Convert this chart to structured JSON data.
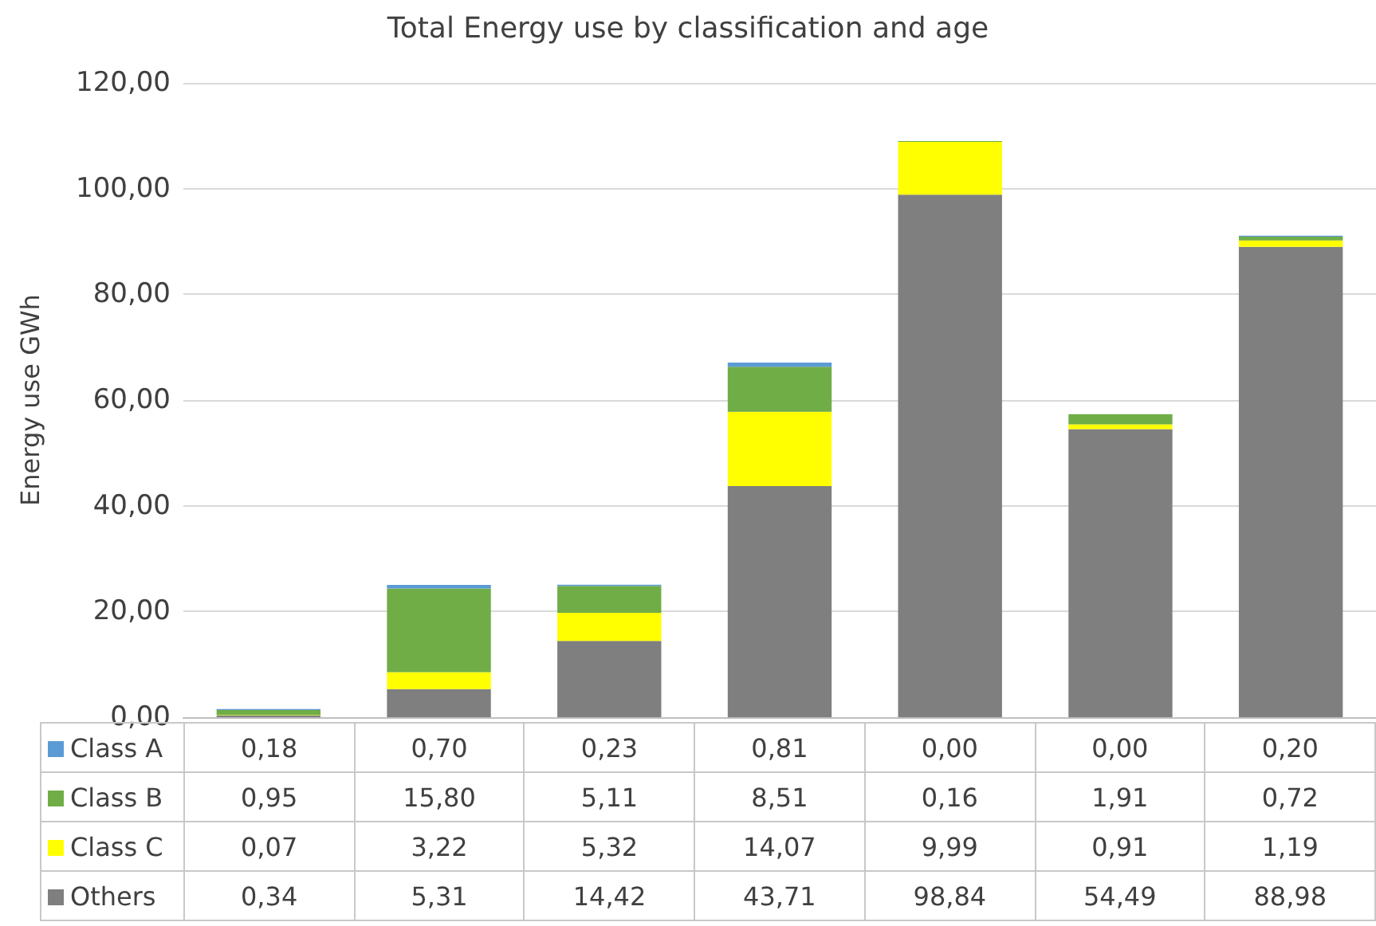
{
  "chart_data": {
    "type": "bar",
    "title": "Total Energy use by classification and age",
    "ylabel": "Energy use GWh",
    "categories": [
      null,
      null,
      null,
      null,
      null,
      null,
      null
    ],
    "stacked": true,
    "series": [
      {
        "name": "Others",
        "color": "#7f7f7f",
        "values": [
          0.34,
          5.31,
          14.42,
          43.71,
          98.84,
          54.49,
          88.98
        ],
        "value_labels": [
          "0,34",
          "5,31",
          "14,42",
          "43,71",
          "98,84",
          "54,49",
          "88,98"
        ]
      },
      {
        "name": "Class C",
        "color": "#ffff00",
        "values": [
          0.07,
          3.22,
          5.32,
          14.07,
          9.99,
          0.91,
          1.19
        ],
        "value_labels": [
          "0,07",
          "3,22",
          "5,32",
          "14,07",
          "9,99",
          "0,91",
          "1,19"
        ]
      },
      {
        "name": "Class B",
        "color": "#70ad47",
        "values": [
          0.95,
          15.8,
          5.11,
          8.51,
          0.16,
          1.91,
          0.72
        ],
        "value_labels": [
          "0,95",
          "15,80",
          "5,11",
          "8,51",
          "0,16",
          "1,91",
          "0,72"
        ]
      },
      {
        "name": "Class A",
        "color": "#5b9bd5",
        "values": [
          0.18,
          0.7,
          0.23,
          0.81,
          0.0,
          0.0,
          0.2
        ],
        "value_labels": [
          "0,18",
          "0,70",
          "0,23",
          "0,81",
          "0,00",
          "0,00",
          "0,20"
        ]
      }
    ],
    "ylim": [
      0,
      120
    ],
    "yticks": [
      {
        "value": 0,
        "label": "0,00"
      },
      {
        "value": 20,
        "label": "20,00"
      },
      {
        "value": 40,
        "label": "40,00"
      },
      {
        "value": 60,
        "label": "60,00"
      },
      {
        "value": 80,
        "label": "80,00"
      },
      {
        "value": 100,
        "label": "100,00"
      },
      {
        "value": 120,
        "label": "120,00"
      }
    ],
    "grid": "y",
    "legend": "bottom left",
    "tick_labels": "y"
  }
}
